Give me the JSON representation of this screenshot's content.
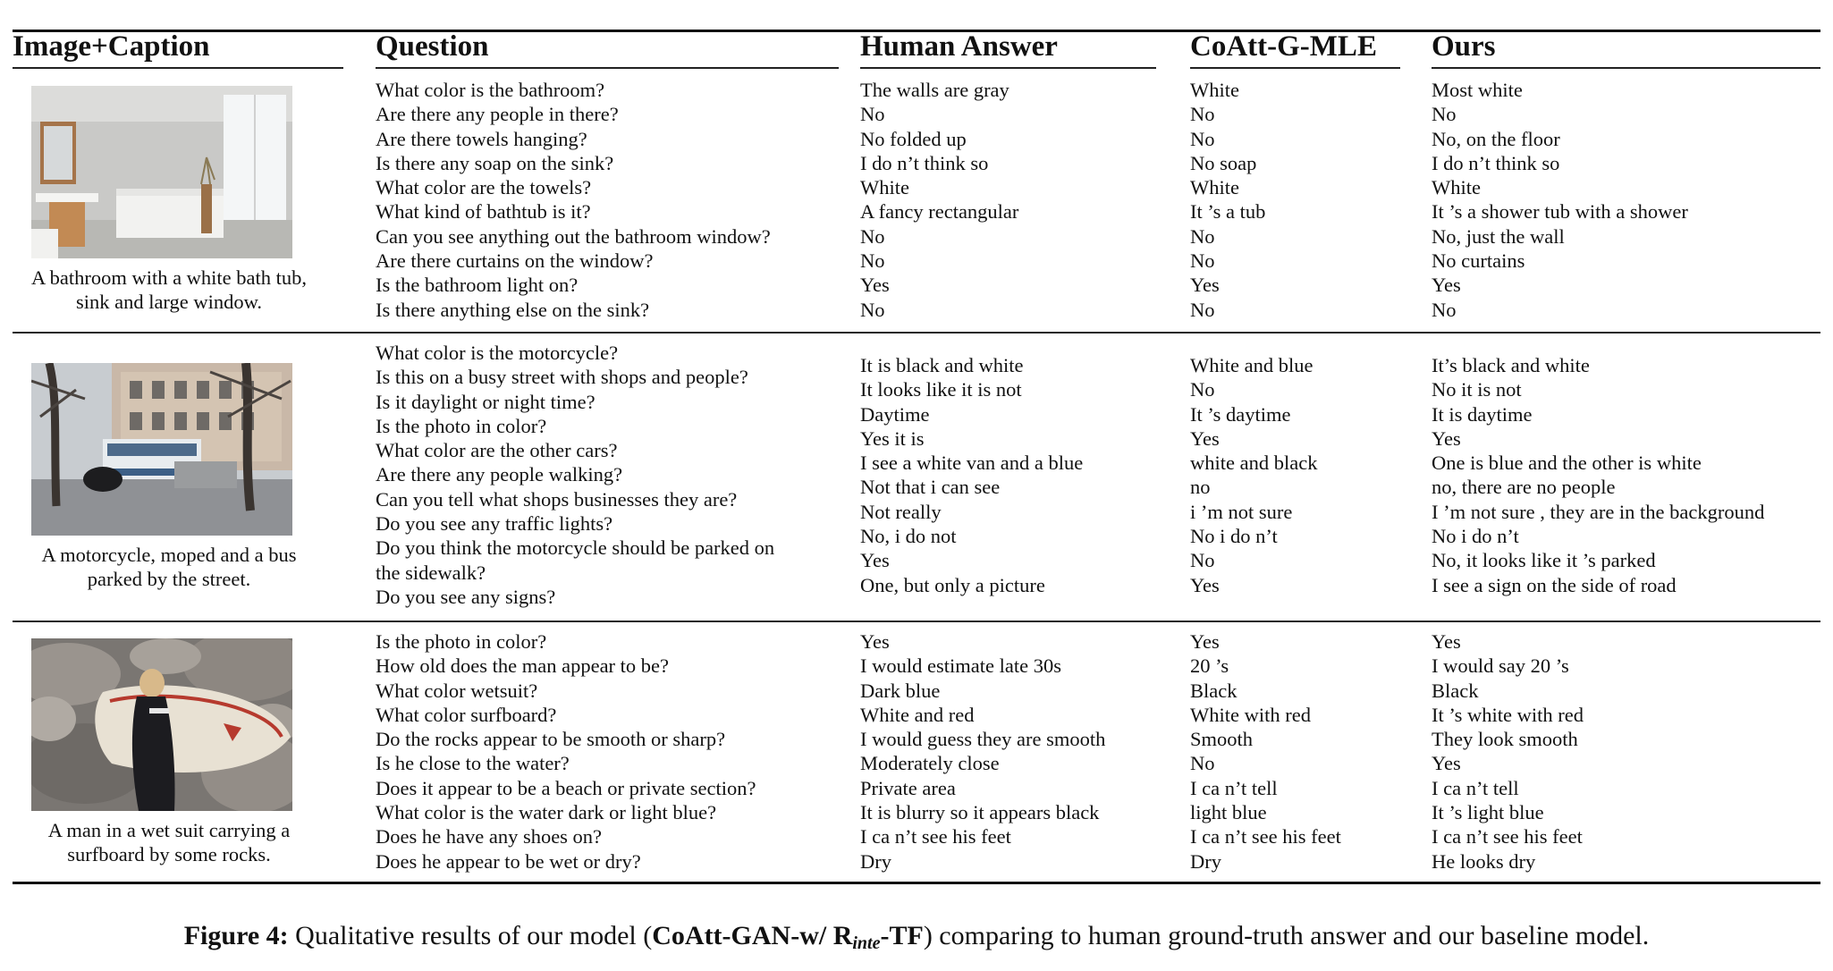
{
  "headers": {
    "image_caption": "Image+Caption",
    "question": "Question",
    "human": "Human Answer",
    "baseline": "CoAtt-G-MLE",
    "ours": "Ours"
  },
  "rows": [
    {
      "caption": [
        "A bathroom with a white bath tub,",
        "sink and large window."
      ],
      "questions": [
        "What color is the bathroom?",
        "Are there any people in there?",
        "Are there towels hanging?",
        "Is there any soap on the sink?",
        "What color are the towels?",
        "What kind of bathtub is it?",
        "Can you see anything out the bathroom window?",
        "Are there curtains on the window?",
        "Is the bathroom light on?",
        "Is there anything else on the sink?"
      ],
      "human": [
        "The walls are gray",
        "No",
        "No folded up",
        "I do n’t think so",
        "White",
        "A fancy rectangular",
        "No",
        "No",
        "Yes",
        "No"
      ],
      "baseline": [
        "White",
        "No",
        "No",
        "No soap",
        "White",
        "It ’s a tub",
        "No",
        "No",
        "Yes",
        "No"
      ],
      "ours": [
        "Most white",
        "No",
        "No, on the floor",
        "I do n’t think so",
        "White",
        "It ’s a shower tub with a shower",
        "No, just the wall",
        "No curtains",
        "Yes",
        "No"
      ]
    },
    {
      "caption": [
        "A motorcycle, moped and a bus",
        "parked by the street."
      ],
      "questions": [
        "What color is the motorcycle?",
        "Is this on a busy street with shops and people?",
        "Is it daylight or night time?",
        "Is the photo in color?",
        "What color are the other cars?",
        "Are there any people walking?",
        "Can you tell what shops businesses they are?",
        "Do you see any traffic lights?",
        "Do you think the motorcycle should be parked on",
        "the sidewalk?",
        "Do you see any signs?"
      ],
      "human": [
        "It is black and white",
        "It looks like it is not",
        "Daytime",
        "Yes it is",
        "I see a white van and a blue",
        "Not that i can see",
        "Not really",
        "No, i do not",
        "Yes",
        "One, but only a picture"
      ],
      "baseline": [
        "White and blue",
        "No",
        "It ’s daytime",
        "Yes",
        "white and black",
        "no",
        "i ’m not sure",
        "No i do n’t",
        "No",
        "Yes"
      ],
      "ours": [
        "It’s black and white",
        "No it is not",
        "It is daytime",
        "Yes",
        "One is blue and the other is white",
        "no, there are no people",
        "I ’m not sure , they are in the background",
        "No i do n’t",
        "No, it looks like it ’s parked",
        "I see a sign on the side of road"
      ]
    },
    {
      "caption": [
        "A man in a wet suit carrying a",
        "surfboard by some rocks."
      ],
      "questions": [
        "Is the photo in color?",
        "How old does the man appear to be?",
        "What color wetsuit?",
        "What color surfboard?",
        "Do the rocks appear to be smooth or sharp?",
        "Is he close to the water?",
        "Does it appear to be a beach or private section?",
        "What color is the water dark or light blue?",
        "Does he have any shoes on?",
        "Does he appear to be wet or dry?"
      ],
      "human": [
        "Yes",
        "I would estimate late 30s",
        "Dark blue",
        "White and red",
        "I would guess they are smooth",
        "Moderately close",
        "Private area",
        "It is blurry so it appears black",
        "I ca n’t see his feet",
        "Dry"
      ],
      "baseline": [
        "Yes",
        "20 ’s",
        "Black",
        "White with red",
        "Smooth",
        "No",
        "I ca n’t tell",
        "light blue",
        "I ca n’t see his feet",
        "Dry"
      ],
      "ours": [
        "Yes",
        "I would say 20 ’s",
        "Black",
        "It ’s white with red",
        "They look smooth",
        "Yes",
        "I ca n’t tell",
        "It ’s light blue",
        "I ca n’t see his feet",
        "He looks dry"
      ]
    }
  ],
  "figure_caption": {
    "label": "Figure 4:",
    "text_before": " Qualitative results of our model (",
    "model_main": "CoAtt-GAN-w/ R",
    "model_sub": "inte",
    "model_end": "-TF",
    "text_after": ") comparing to human ground-truth answer and our baseline model."
  }
}
